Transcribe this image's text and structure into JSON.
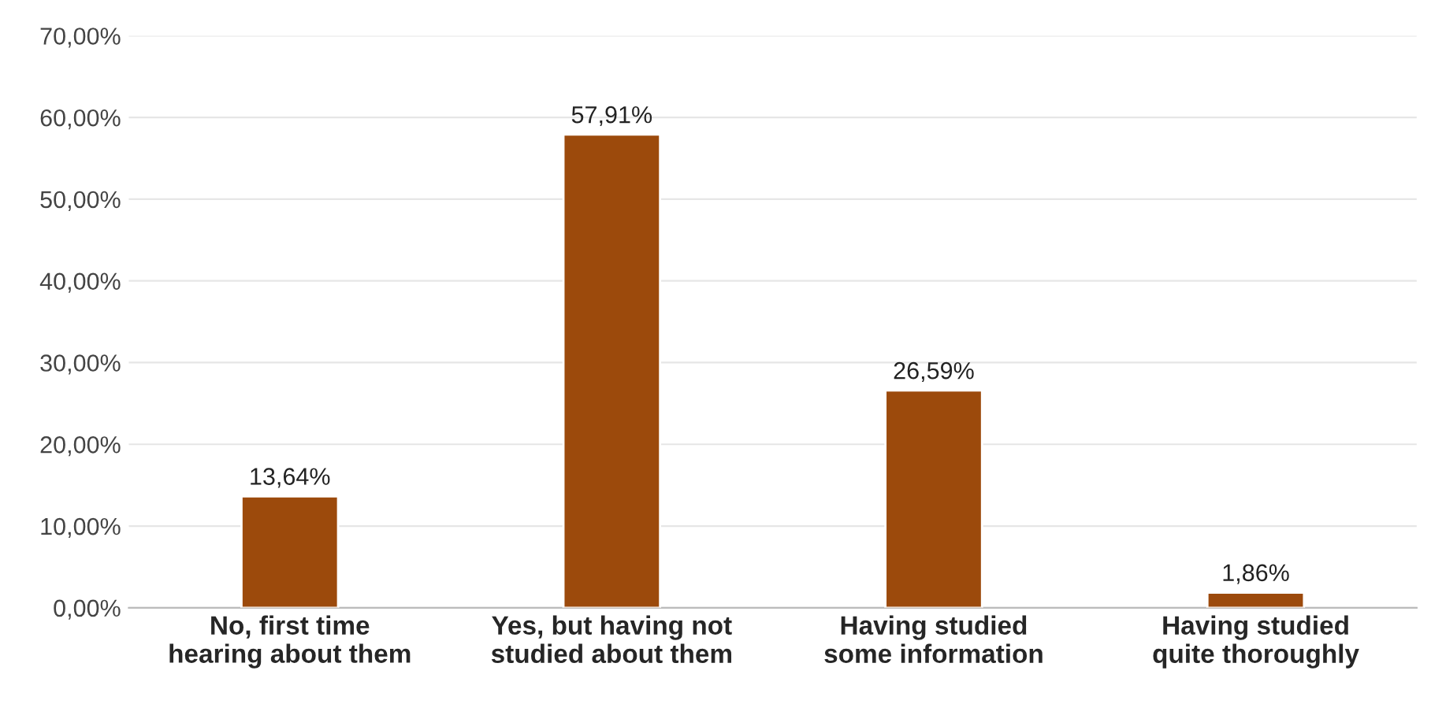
{
  "chart_data": {
    "type": "bar",
    "categories": [
      "No, first time\nhearing about them",
      "Yes, but having not\nstudied about them",
      "Having studied\nsome information",
      "Having studied\nquite thoroughly"
    ],
    "values": [
      13.64,
      57.91,
      26.59,
      1.86
    ],
    "value_labels": [
      "13,64%",
      "57,91%",
      "26,59%",
      "1,86%"
    ],
    "color": "#9c4a0c",
    "ylim": [
      0,
      70
    ],
    "yticks": [
      {
        "value": 0,
        "label": "0,00%"
      },
      {
        "value": 10,
        "label": "10,00%"
      },
      {
        "value": 20,
        "label": "20,00%"
      },
      {
        "value": 30,
        "label": "30,00%"
      },
      {
        "value": 40,
        "label": "40,00%"
      },
      {
        "value": 50,
        "label": "50,00%"
      },
      {
        "value": 60,
        "label": "60,00%"
      },
      {
        "value": 70,
        "label": "70,00%"
      }
    ],
    "grid": "y"
  }
}
